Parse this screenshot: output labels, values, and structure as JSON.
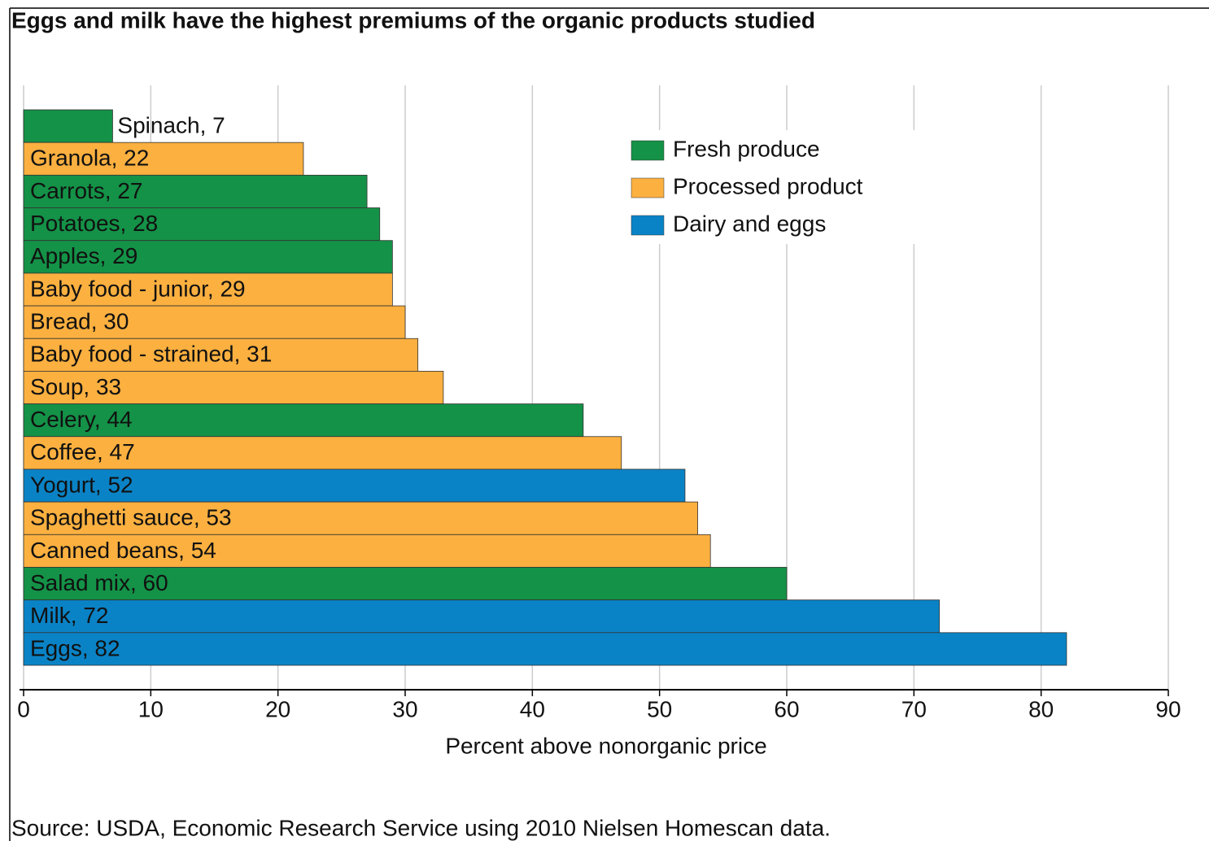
{
  "chart_data": {
    "type": "bar",
    "orientation": "horizontal",
    "title": "Eggs and milk have the highest premiums of the organic products studied",
    "values": [
      7,
      22,
      27,
      28,
      29,
      29,
      30,
      31,
      33,
      44,
      47,
      52,
      53,
      54,
      60,
      72,
      82
    ],
    "value_labels": [
      "Spinach, 7",
      "Granola, 22",
      "Carrots, 27",
      "Potatoes, 28",
      "Apples, 29",
      "Baby food - junior, 29",
      "Bread, 30",
      "Baby food - strained, 31",
      "Soup, 33",
      "Celery, 44",
      "Coffee, 47",
      "Yogurt, 52",
      "Spaghetti sauce, 53",
      "Canned beans, 54",
      "Salad mix, 60",
      "Milk, 72",
      "Eggs, 82"
    ],
    "colors": [
      "#149247",
      "#fbb040",
      "#149247",
      "#149247",
      "#149247",
      "#fbb040",
      "#fbb040",
      "#fbb040",
      "#fbb040",
      "#149247",
      "#fbb040",
      "#0a83c6",
      "#fbb040",
      "#fbb040",
      "#149247",
      "#0a83c6",
      "#0a83c6"
    ],
    "legend": [
      {
        "name": "Fresh produce",
        "color": "#149247"
      },
      {
        "name": "Processed product",
        "color": "#fbb040"
      },
      {
        "name": "Dairy and eggs",
        "color": "#0a83c6"
      }
    ],
    "xlim": [
      0,
      90
    ],
    "xticks": [
      0,
      10,
      20,
      30,
      40,
      50,
      60,
      70,
      80,
      90
    ],
    "grid": true,
    "xlabel": "Percent above nonorganic price",
    "source": "Source: USDA, Economic Research Service using 2010 Nielsen Homescan data."
  }
}
